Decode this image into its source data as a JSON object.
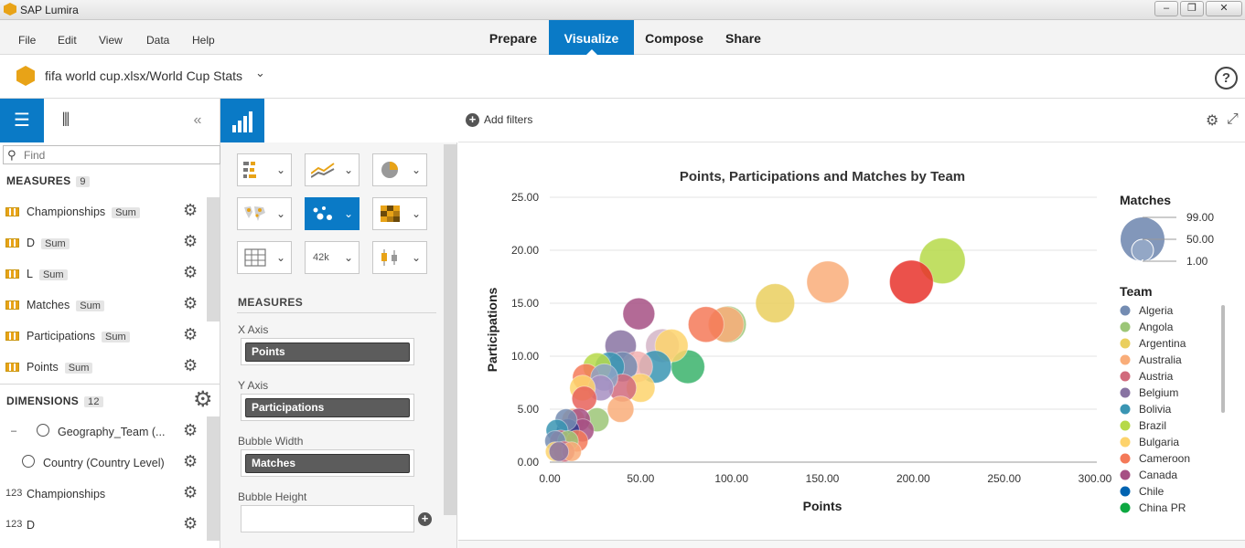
{
  "window": {
    "title": "SAP Lumira",
    "controls": [
      "–",
      "❐",
      "✕"
    ]
  },
  "menu": {
    "items": [
      "File",
      "Edit",
      "View",
      "Data",
      "Help"
    ]
  },
  "nav": {
    "tabs": [
      "Prepare",
      "Visualize",
      "Compose",
      "Share"
    ],
    "active": "Visualize"
  },
  "document": {
    "title": "fifa world cup.xlsx/World Cup Stats"
  },
  "left_panel": {
    "find_placeholder": "Find",
    "measures_label": "MEASURES",
    "measures_count": "9",
    "measures": [
      {
        "name": "Championships",
        "agg": "Sum"
      },
      {
        "name": "D",
        "agg": "Sum"
      },
      {
        "name": "L",
        "agg": "Sum"
      },
      {
        "name": "Matches",
        "agg": "Sum"
      },
      {
        "name": "Participations",
        "agg": "Sum"
      },
      {
        "name": "Points",
        "agg": "Sum"
      }
    ],
    "dimensions_label": "DIMENSIONS",
    "dimensions_count": "12",
    "dimensions": [
      {
        "prefix": "–",
        "name": "Geography_Team (..."
      },
      {
        "prefix": "",
        "name": "Country (Country Level)"
      },
      {
        "prefix": "123",
        "name": "Championships"
      },
      {
        "prefix": "123",
        "name": "D"
      }
    ]
  },
  "builder": {
    "measures_label": "MEASURES",
    "shelves": [
      {
        "label": "X Axis",
        "value": "Points"
      },
      {
        "label": "Y Axis",
        "value": "Participations"
      },
      {
        "label": "Bubble Width",
        "value": "Matches"
      },
      {
        "label": "Bubble Height",
        "value": ""
      }
    ],
    "chart_types": [
      "bar",
      "line",
      "pie",
      "geo-map",
      "bubble",
      "heatmap",
      "table",
      "numeric-point",
      "box-plot"
    ],
    "numeric_point_label": "42k",
    "selected_chart_type": "bubble"
  },
  "filter_bar": {
    "add_filters_label": "Add filters"
  },
  "chart_data": {
    "type": "scatter",
    "title": "Points, Participations and Matches by Team",
    "xlabel": "Points",
    "ylabel": "Participations",
    "xlim": [
      0,
      300
    ],
    "ylim": [
      0,
      25
    ],
    "x_ticks": [
      "0.00",
      "50.00",
      "100.00",
      "150.00",
      "200.00",
      "250.00",
      "300.00"
    ],
    "y_ticks": [
      "0.00",
      "5.00",
      "10.00",
      "15.00",
      "20.00",
      "25.00"
    ],
    "grid": true,
    "size_legend": {
      "title": "Matches",
      "values": [
        "99.00",
        "50.00",
        "1.00"
      ]
    },
    "color_legend_title": "Team",
    "teams": [
      {
        "name": "Algeria",
        "color": "#748cb2"
      },
      {
        "name": "Angola",
        "color": "#9cc677"
      },
      {
        "name": "Argentina",
        "color": "#eacf5e"
      },
      {
        "name": "Australia",
        "color": "#f9ad79"
      },
      {
        "name": "Austria",
        "color": "#d16a7c"
      },
      {
        "name": "Belgium",
        "color": "#8873a2"
      },
      {
        "name": "Bolivia",
        "color": "#3a95b3"
      },
      {
        "name": "Brazil",
        "color": "#b6d949"
      },
      {
        "name": "Bulgaria",
        "color": "#fdd36c"
      },
      {
        "name": "Cameroon",
        "color": "#f47958"
      },
      {
        "name": "Canada",
        "color": "#a65084"
      },
      {
        "name": "Chile",
        "color": "#0063b1"
      },
      {
        "name": "China PR",
        "color": "#0da841"
      }
    ],
    "points": [
      {
        "x": 216,
        "y": 19,
        "size": 99,
        "color": "#b6d949"
      },
      {
        "x": 199,
        "y": 17,
        "size": 88,
        "color": "#e8322b"
      },
      {
        "x": 153,
        "y": 17,
        "size": 80,
        "color": "#f9ad79"
      },
      {
        "x": 124,
        "y": 15,
        "size": 66,
        "color": "#eacf5e"
      },
      {
        "x": 98,
        "y": 13,
        "size": 56,
        "color": "#9cc677"
      },
      {
        "x": 97,
        "y": 13,
        "size": 52,
        "color": "#f9ad79"
      },
      {
        "x": 86,
        "y": 13,
        "size": 52,
        "color": "#f47958"
      },
      {
        "x": 67,
        "y": 11,
        "size": 42,
        "color": "#fdd36c"
      },
      {
        "x": 62,
        "y": 11,
        "size": 44,
        "color": "#d4b5c7"
      },
      {
        "x": 76,
        "y": 9,
        "size": 44,
        "color": "#3ab36b"
      },
      {
        "x": 49,
        "y": 14,
        "size": 38,
        "color": "#a65084"
      },
      {
        "x": 39,
        "y": 11,
        "size": 36,
        "color": "#8873a2"
      },
      {
        "x": 58,
        "y": 9,
        "size": 40,
        "color": "#3a95b3"
      },
      {
        "x": 48,
        "y": 9,
        "size": 36,
        "color": "#f2b0b0"
      },
      {
        "x": 40,
        "y": 9,
        "size": 32,
        "color": "#748cb2"
      },
      {
        "x": 33,
        "y": 9,
        "size": 30,
        "color": "#3a95b3"
      },
      {
        "x": 26,
        "y": 9,
        "size": 26,
        "color": "#b6d949"
      },
      {
        "x": 20,
        "y": 8,
        "size": 24,
        "color": "#f47958"
      },
      {
        "x": 50,
        "y": 7,
        "size": 28,
        "color": "#fdd36c"
      },
      {
        "x": 40,
        "y": 7,
        "size": 26,
        "color": "#d16a7c"
      },
      {
        "x": 30,
        "y": 8,
        "size": 24,
        "color": "#8da3c6"
      },
      {
        "x": 28,
        "y": 7,
        "size": 20,
        "color": "#a78fc2"
      },
      {
        "x": 18,
        "y": 7,
        "size": 20,
        "color": "#fdd36c"
      },
      {
        "x": 19,
        "y": 6,
        "size": 18,
        "color": "#e8625a"
      },
      {
        "x": 39,
        "y": 5,
        "size": 22,
        "color": "#f9ad79"
      },
      {
        "x": 26,
        "y": 4,
        "size": 16,
        "color": "#9cc677"
      },
      {
        "x": 13,
        "y": 4,
        "size": 14,
        "color": "#f9ad79"
      },
      {
        "x": 16,
        "y": 4,
        "size": 14,
        "color": "#a65084"
      },
      {
        "x": 9,
        "y": 4,
        "size": 12,
        "color": "#748cb2"
      },
      {
        "x": 18,
        "y": 3,
        "size": 14,
        "color": "#a65084"
      },
      {
        "x": 10,
        "y": 3,
        "size": 14,
        "color": "#2f3d8f"
      },
      {
        "x": 4,
        "y": 3,
        "size": 12,
        "color": "#3a95b3"
      },
      {
        "x": 6,
        "y": 2,
        "size": 12,
        "color": "#d16a7c"
      },
      {
        "x": 15,
        "y": 2,
        "size": 12,
        "color": "#f47958"
      },
      {
        "x": 10,
        "y": 2,
        "size": 10,
        "color": "#9cc677"
      },
      {
        "x": 3,
        "y": 2,
        "size": 10,
        "color": "#748cb2"
      },
      {
        "x": 8,
        "y": 1,
        "size": 10,
        "color": "#d16a7c"
      },
      {
        "x": 3,
        "y": 1,
        "size": 8,
        "color": "#fdd36c"
      },
      {
        "x": 12,
        "y": 1,
        "size": 8,
        "color": "#f9ad79"
      },
      {
        "x": 5,
        "y": 1,
        "size": 8,
        "color": "#8873a2"
      }
    ]
  }
}
